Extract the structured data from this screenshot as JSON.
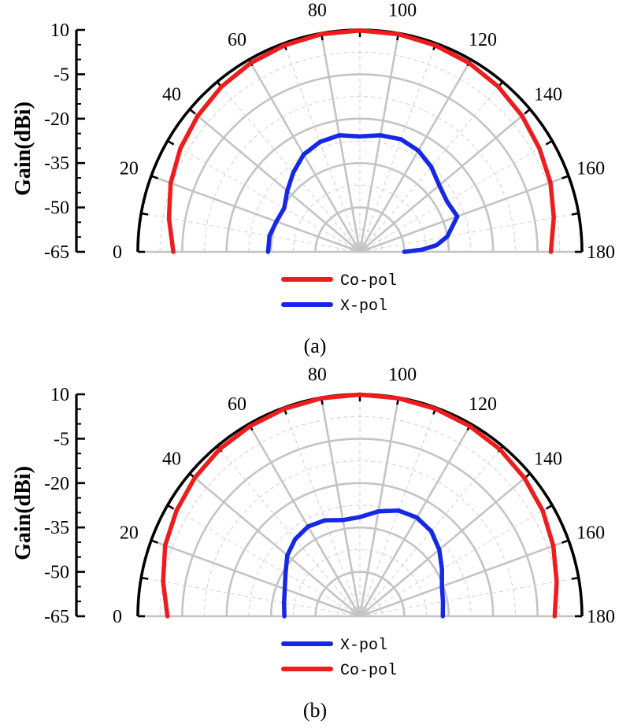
{
  "chart_data": [
    {
      "type": "polar-line",
      "panel_label": "(a)",
      "ylabel": "Gain(dBi)",
      "r_ticks": [
        "10",
        "-5",
        "-20",
        "-35",
        "-50",
        "-65"
      ],
      "r_range": [
        -65,
        10
      ],
      "angle_range": [
        0,
        180
      ],
      "angle_labels": [
        "0",
        "20",
        "40",
        "60",
        "80",
        "100",
        "120",
        "140",
        "160",
        "180"
      ],
      "angle_label_values": [
        0,
        20,
        40,
        60,
        80,
        100,
        120,
        140,
        160,
        180
      ],
      "legend": [
        {
          "label": "Co-pol",
          "color": "#ee1c1c"
        },
        {
          "label": "X-pol",
          "color": "#1428e6"
        }
      ],
      "series": [
        {
          "name": "Co-pol",
          "color": "#ee1c1c",
          "angles": [
            0,
            10,
            20,
            30,
            40,
            50,
            60,
            70,
            80,
            90,
            100,
            110,
            120,
            130,
            140,
            150,
            160,
            170,
            180
          ],
          "values": [
            -2,
            0.5,
            3,
            5,
            6.5,
            7.8,
            8.7,
            9.3,
            9.7,
            9.8,
            9.7,
            9.3,
            8.7,
            7.8,
            6.5,
            5,
            3.5,
            1.5,
            -0.5
          ]
        },
        {
          "name": "X-pol",
          "color": "#1428e6",
          "angles": [
            0,
            10,
            20,
            30,
            40,
            50,
            60,
            70,
            80,
            90,
            100,
            110,
            120,
            130,
            140,
            150,
            160,
            170,
            175,
            178,
            180
          ],
          "values": [
            -34,
            -34,
            -35,
            -35.5,
            -33,
            -30,
            -27,
            -25.5,
            -25,
            -26,
            -25,
            -24.5,
            -25.5,
            -27.5,
            -30,
            -31,
            -30,
            -35,
            -39,
            -44,
            -50
          ]
        }
      ]
    },
    {
      "type": "polar-line",
      "panel_label": "(b)",
      "ylabel": "Gain(dBi)",
      "r_ticks": [
        "10",
        "-5",
        "-20",
        "-35",
        "-50",
        "-65"
      ],
      "r_range": [
        -65,
        10
      ],
      "angle_range": [
        0,
        180
      ],
      "angle_labels": [
        "0",
        "20",
        "40",
        "60",
        "80",
        "100",
        "120",
        "140",
        "160",
        "180"
      ],
      "angle_label_values": [
        0,
        20,
        40,
        60,
        80,
        100,
        120,
        140,
        160,
        180
      ],
      "legend": [
        {
          "label": "X-pol",
          "color": "#1428e6"
        },
        {
          "label": "Co-pol",
          "color": "#ee1c1c"
        }
      ],
      "series": [
        {
          "name": "Co-pol",
          "color": "#ee1c1c",
          "angles": [
            0,
            10,
            20,
            30,
            40,
            50,
            60,
            70,
            80,
            90,
            100,
            110,
            120,
            130,
            140,
            150,
            160,
            170,
            180
          ],
          "values": [
            0,
            2.5,
            5,
            6.5,
            7.8,
            8.7,
            9.2,
            9.6,
            9.8,
            9.9,
            9.8,
            9.6,
            9.2,
            8.6,
            7.6,
            6.3,
            4.5,
            2.5,
            0.8
          ]
        },
        {
          "name": "X-pol",
          "color": "#1428e6",
          "angles": [
            0,
            10,
            20,
            30,
            40,
            50,
            60,
            70,
            80,
            90,
            100,
            110,
            120,
            130,
            140,
            150,
            160,
            170,
            180
          ],
          "values": [
            -39.5,
            -39,
            -38,
            -36,
            -33,
            -31,
            -30,
            -30.5,
            -32,
            -31.5,
            -29,
            -27,
            -26.5,
            -27.5,
            -30,
            -33,
            -35.5,
            -36.5,
            -37
          ]
        }
      ]
    }
  ]
}
